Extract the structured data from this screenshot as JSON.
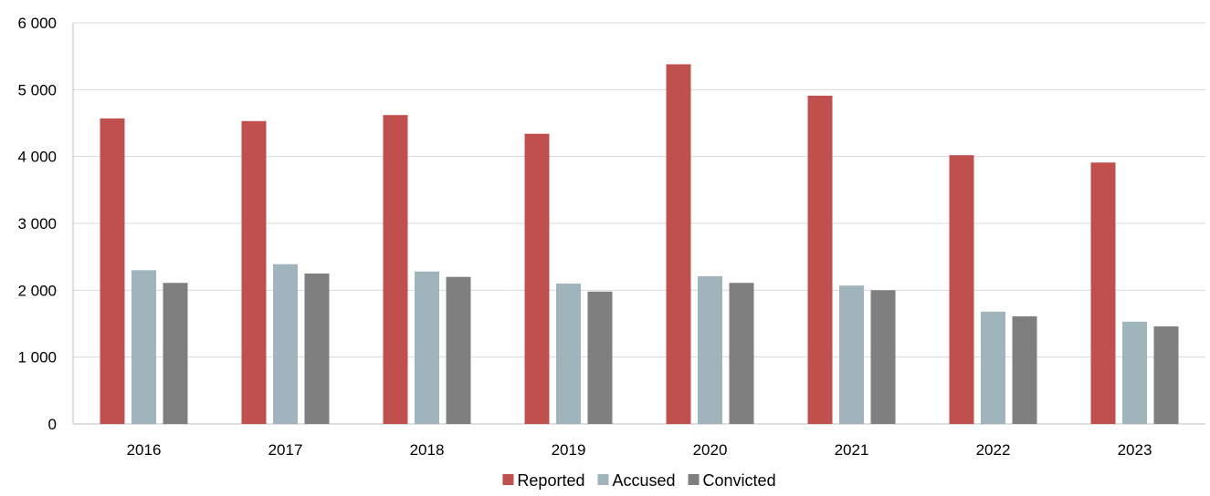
{
  "chart_data": {
    "type": "bar",
    "title": "",
    "xlabel": "",
    "ylabel": "",
    "categories": [
      "2016",
      "2017",
      "2018",
      "2019",
      "2020",
      "2021",
      "2022",
      "2023"
    ],
    "series": [
      {
        "name": "Reported",
        "color": "#c0504d",
        "values": [
          4570,
          4530,
          4620,
          4340,
          5380,
          4910,
          4020,
          3910
        ]
      },
      {
        "name": "Accused",
        "color": "#a0b4bb",
        "values": [
          2300,
          2390,
          2280,
          2100,
          2210,
          2070,
          1680,
          1530
        ]
      },
      {
        "name": "Convicted",
        "color": "#7f7f7f",
        "values": [
          2110,
          2250,
          2200,
          1980,
          2110,
          2000,
          1610,
          1460
        ]
      }
    ],
    "ylim": [
      0,
      6000
    ],
    "yticks": [
      0,
      1000,
      2000,
      3000,
      4000,
      5000,
      6000
    ],
    "ytick_labels": [
      "0",
      "1 000",
      "2 000",
      "3 000",
      "4 000",
      "5 000",
      "6 000"
    ],
    "grid": true,
    "legend_position": "bottom"
  }
}
